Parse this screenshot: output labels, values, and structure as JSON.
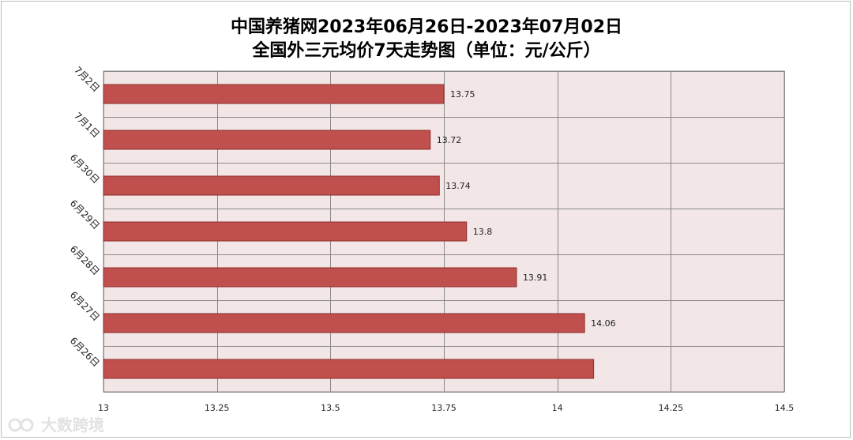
{
  "title_line1": "中国养猪网2023年06月26日-2023年07月02日",
  "title_line2": "全国外三元均价7天走势图（单位：元/公斤）",
  "watermark_text": "大数跨境",
  "colors": {
    "bar_fill": "#c0504d",
    "bar_stroke": "#8c2d2b",
    "plot_bg": "#f2e6e6",
    "grid": "#8a8a8a"
  },
  "chart_data": {
    "type": "bar",
    "orientation": "horizontal",
    "categories": [
      "7月2日",
      "7月1日",
      "6月30日",
      "6月29日",
      "6月28日",
      "6月27日",
      "6月26日"
    ],
    "values": [
      13.75,
      13.72,
      13.74,
      13.8,
      13.91,
      14.06,
      14.08
    ],
    "data_labels": [
      "13.75",
      "13.72",
      "13.74",
      "13.8",
      "13.91",
      "14.06",
      ""
    ],
    "xlim": [
      13,
      14.5
    ],
    "xticks": [
      13,
      13.25,
      13.5,
      13.75,
      14,
      14.25,
      14.5
    ],
    "xtick_labels": [
      "13",
      "13.25",
      "13.5",
      "13.75",
      "14",
      "14.25",
      "14.5"
    ],
    "grid": true,
    "legend": "none"
  }
}
